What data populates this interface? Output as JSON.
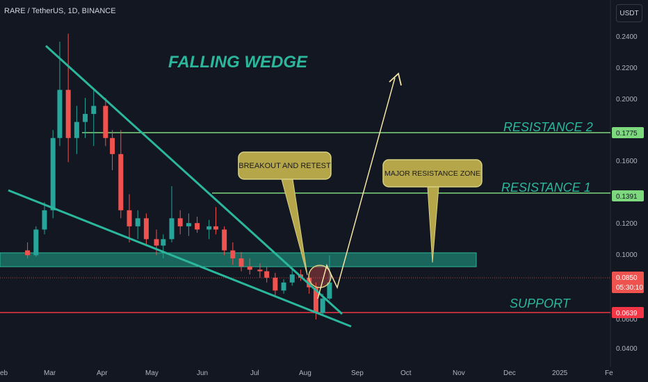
{
  "header": {
    "symbol_title": "RARE / TetherUS, 1D, BINANCE",
    "currency": "USDT"
  },
  "colors": {
    "background": "#131722",
    "bull": "#26a69a",
    "bear": "#ef5350",
    "annotation": "#2bb79c",
    "resistance_line": "#7ed87e",
    "support_line": "#f23645",
    "callout_fill": "#b5a64a",
    "arrow": "#f4e4a6"
  },
  "chart_data": {
    "type": "candlestick",
    "title": "FALLING WEDGE",
    "y_ticks": [
      "0.2400",
      "0.2200",
      "0.2000",
      "0.1600",
      "0.1200",
      "0.1000",
      "0.0400"
    ],
    "ylim": [
      0.036,
      0.248
    ],
    "x_ticks": [
      "eb",
      "Mar",
      "Apr",
      "May",
      "Jun",
      "Jul",
      "Aug",
      "Sep",
      "Oct",
      "Nov",
      "Dec",
      "2025",
      "Fe"
    ],
    "candles": [
      {
        "date": "2024-02-15",
        "open": 0.105,
        "high": 0.11,
        "low": 0.1,
        "close": 0.102
      },
      {
        "date": "2024-02-20",
        "open": 0.102,
        "high": 0.12,
        "low": 0.101,
        "close": 0.118
      },
      {
        "date": "2024-02-25",
        "open": 0.118,
        "high": 0.135,
        "low": 0.115,
        "close": 0.13
      },
      {
        "date": "2024-03-01",
        "open": 0.13,
        "high": 0.18,
        "low": 0.125,
        "close": 0.175
      },
      {
        "date": "2024-03-05",
        "open": 0.175,
        "high": 0.235,
        "low": 0.17,
        "close": 0.205
      },
      {
        "date": "2024-03-10",
        "open": 0.205,
        "high": 0.24,
        "low": 0.16,
        "close": 0.175
      },
      {
        "date": "2024-03-15",
        "open": 0.175,
        "high": 0.195,
        "low": 0.165,
        "close": 0.185
      },
      {
        "date": "2024-03-20",
        "open": 0.185,
        "high": 0.2,
        "low": 0.175,
        "close": 0.19
      },
      {
        "date": "2024-03-25",
        "open": 0.19,
        "high": 0.205,
        "low": 0.17,
        "close": 0.195
      },
      {
        "date": "2024-04-01",
        "open": 0.195,
        "high": 0.2,
        "low": 0.17,
        "close": 0.175
      },
      {
        "date": "2024-04-05",
        "open": 0.175,
        "high": 0.18,
        "low": 0.155,
        "close": 0.165
      },
      {
        "date": "2024-04-10",
        "open": 0.165,
        "high": 0.18,
        "low": 0.125,
        "close": 0.13
      },
      {
        "date": "2024-04-15",
        "open": 0.13,
        "high": 0.14,
        "low": 0.11,
        "close": 0.12
      },
      {
        "date": "2024-04-20",
        "open": 0.12,
        "high": 0.13,
        "low": 0.112,
        "close": 0.125
      },
      {
        "date": "2024-04-25",
        "open": 0.125,
        "high": 0.128,
        "low": 0.108,
        "close": 0.112
      },
      {
        "date": "2024-05-01",
        "open": 0.112,
        "high": 0.118,
        "low": 0.102,
        "close": 0.108
      },
      {
        "date": "2024-05-05",
        "open": 0.108,
        "high": 0.115,
        "low": 0.1,
        "close": 0.112
      },
      {
        "date": "2024-05-10",
        "open": 0.112,
        "high": 0.145,
        "low": 0.11,
        "close": 0.125
      },
      {
        "date": "2024-05-15",
        "open": 0.125,
        "high": 0.13,
        "low": 0.115,
        "close": 0.12
      },
      {
        "date": "2024-05-20",
        "open": 0.12,
        "high": 0.128,
        "low": 0.114,
        "close": 0.122
      },
      {
        "date": "2024-05-25",
        "open": 0.122,
        "high": 0.126,
        "low": 0.116,
        "close": 0.118
      },
      {
        "date": "2024-06-01",
        "open": 0.118,
        "high": 0.124,
        "low": 0.112,
        "close": 0.12
      },
      {
        "date": "2024-06-05",
        "open": 0.12,
        "high": 0.132,
        "low": 0.115,
        "close": 0.118
      },
      {
        "date": "2024-06-10",
        "open": 0.118,
        "high": 0.12,
        "low": 0.102,
        "close": 0.105
      },
      {
        "date": "2024-06-15",
        "open": 0.105,
        "high": 0.11,
        "low": 0.096,
        "close": 0.1
      },
      {
        "date": "2024-06-20",
        "open": 0.1,
        "high": 0.104,
        "low": 0.092,
        "close": 0.095
      },
      {
        "date": "2024-06-25",
        "open": 0.095,
        "high": 0.1,
        "low": 0.09,
        "close": 0.093
      },
      {
        "date": "2024-07-01",
        "open": 0.093,
        "high": 0.097,
        "low": 0.088,
        "close": 0.092
      },
      {
        "date": "2024-07-05",
        "open": 0.092,
        "high": 0.095,
        "low": 0.085,
        "close": 0.088
      },
      {
        "date": "2024-07-10",
        "open": 0.088,
        "high": 0.091,
        "low": 0.076,
        "close": 0.08
      },
      {
        "date": "2024-07-15",
        "open": 0.08,
        "high": 0.087,
        "low": 0.078,
        "close": 0.085
      },
      {
        "date": "2024-07-20",
        "open": 0.085,
        "high": 0.094,
        "low": 0.083,
        "close": 0.09
      },
      {
        "date": "2024-07-25",
        "open": 0.09,
        "high": 0.093,
        "low": 0.086,
        "close": 0.088
      },
      {
        "date": "2024-07-30",
        "open": 0.088,
        "high": 0.09,
        "low": 0.078,
        "close": 0.082
      },
      {
        "date": "2024-08-03",
        "open": 0.082,
        "high": 0.085,
        "low": 0.062,
        "close": 0.066
      },
      {
        "date": "2024-08-07",
        "open": 0.066,
        "high": 0.078,
        "low": 0.064,
        "close": 0.075
      },
      {
        "date": "2024-08-11",
        "open": 0.075,
        "high": 0.102,
        "low": 0.074,
        "close": 0.085
      }
    ],
    "annotations": {
      "resistance_2": {
        "label": "RESISTANCE 2",
        "price": 0.1775,
        "tag": "0.1775"
      },
      "resistance_1": {
        "label": "RESISTANCE 1",
        "price": 0.1391,
        "tag": "0.1391"
      },
      "support": {
        "label": "SUPPORT",
        "price": 0.0639,
        "tag": "0.0639"
      },
      "current_price": {
        "price": 0.085,
        "tag": "0.0850",
        "countdown": "05:30:10"
      },
      "hidden_tag": "0.0600",
      "major_resistance_zone": {
        "label": "MAJOR RESISTANCE ZONE",
        "low": 0.0935,
        "high": 0.101
      },
      "breakout_callout": "BREAKOUT AND RETEST"
    }
  }
}
